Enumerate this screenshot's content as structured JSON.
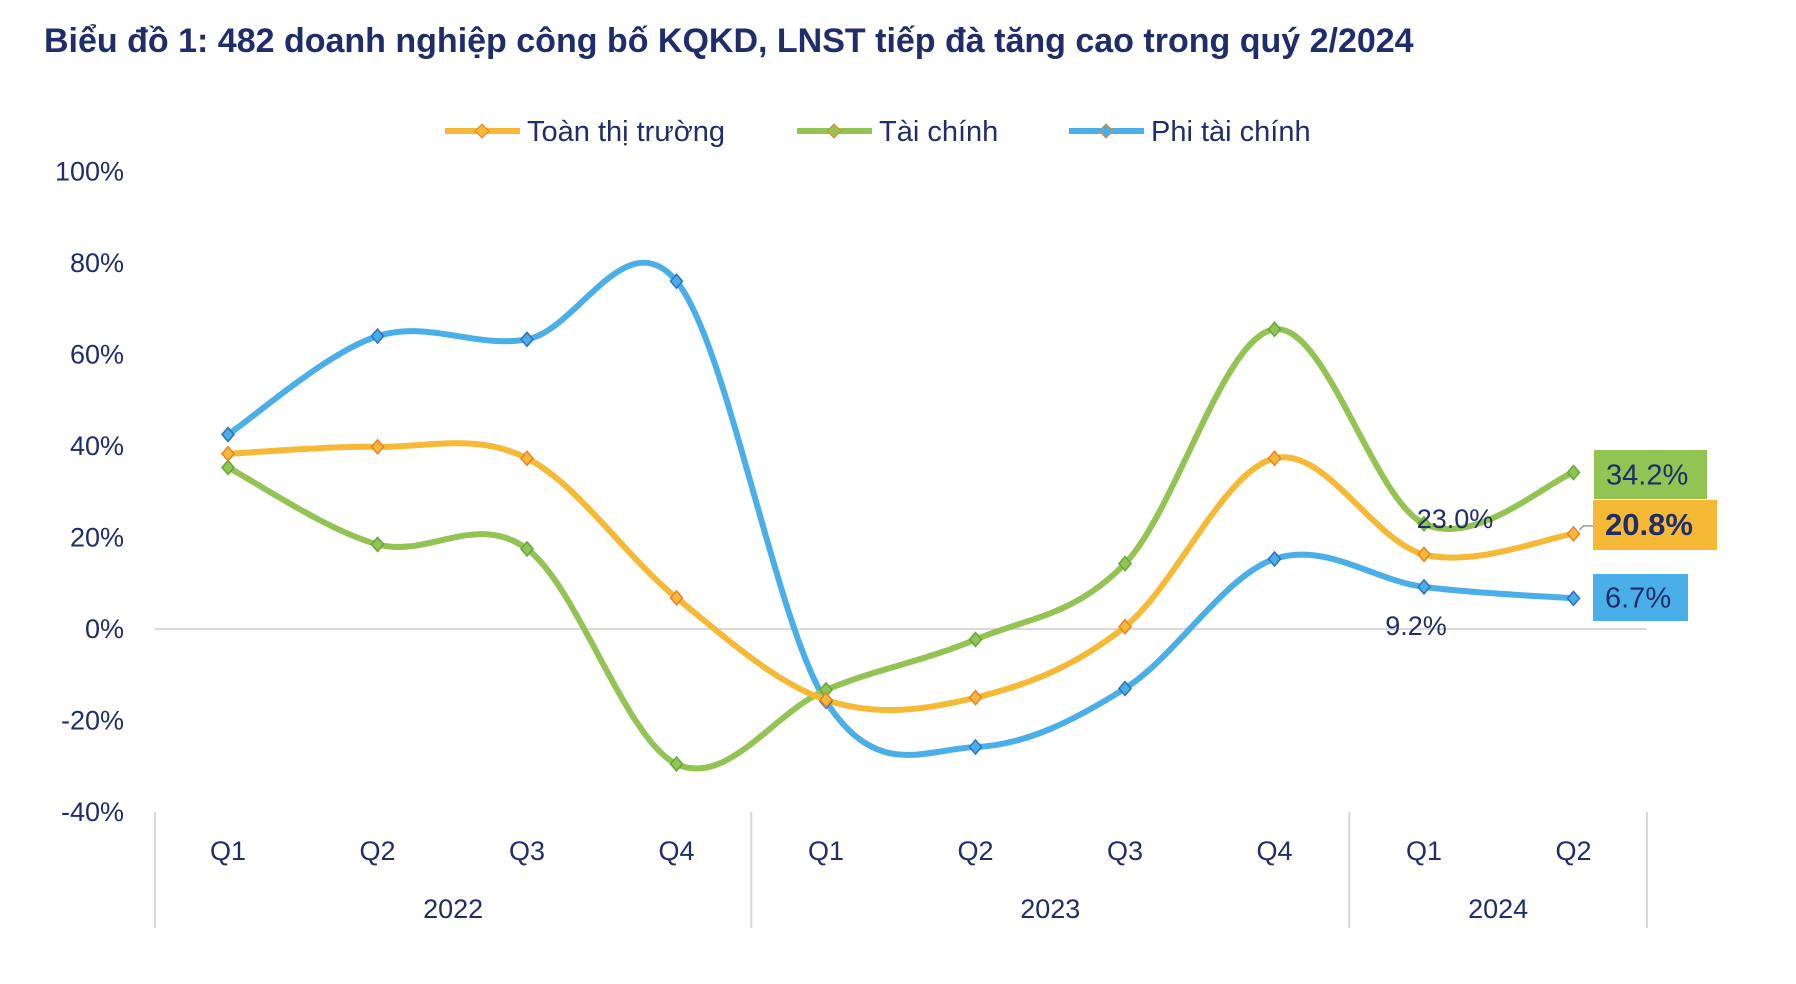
{
  "chart_data": {
    "type": "line",
    "title": "Biểu đồ 1: 482 doanh nghiệp công bố KQKD, LNST tiếp đà tăng cao trong quý 2/2024",
    "categories": [
      "Q1",
      "Q2",
      "Q3",
      "Q4",
      "Q1",
      "Q2",
      "Q3",
      "Q4",
      "Q1",
      "Q2"
    ],
    "groups": [
      {
        "label": "2022",
        "count": 4
      },
      {
        "label": "2023",
        "count": 4
      },
      {
        "label": "2024",
        "count": 2
      }
    ],
    "ylim": [
      -40,
      100
    ],
    "yticks": [
      -40,
      -20,
      0,
      20,
      40,
      60,
      80,
      100
    ],
    "ytick_labels": [
      "-40%",
      "-20%",
      "0%",
      "20%",
      "40%",
      "60%",
      "80%",
      "100%"
    ],
    "legend": "top",
    "grid": false,
    "smooth": true,
    "series": [
      {
        "name": "Toàn thị trường",
        "color": "#f5b935",
        "values": [
          38.3,
          39.8,
          37.3,
          6.8,
          -15.5,
          -15.0,
          0.5,
          37.3,
          16.3,
          20.8
        ]
      },
      {
        "name": "Tài chính",
        "color": "#92c353",
        "values": [
          35.3,
          18.5,
          17.5,
          -29.5,
          -13.3,
          -2.3,
          14.3,
          65.5,
          23.0,
          34.2
        ]
      },
      {
        "name": "Phi tài chính",
        "color": "#4aaee8",
        "values": [
          42.5,
          64.0,
          63.3,
          76.0,
          -15.8,
          -25.8,
          -13.0,
          15.3,
          9.2,
          6.7
        ]
      }
    ],
    "annotations": [
      {
        "text": "34.2%",
        "series": 1,
        "index": 9,
        "boxed": true,
        "bold": false
      },
      {
        "text": "20.8%",
        "series": 0,
        "index": 9,
        "boxed": true,
        "bold": true
      },
      {
        "text": "6.7%",
        "series": 2,
        "index": 9,
        "boxed": true,
        "bold": false
      },
      {
        "text": "23.0%",
        "series": 1,
        "index": 8,
        "boxed": false,
        "bold": false
      },
      {
        "text": "9.2%",
        "series": 2,
        "index": 8,
        "boxed": false,
        "bold": false
      }
    ]
  }
}
